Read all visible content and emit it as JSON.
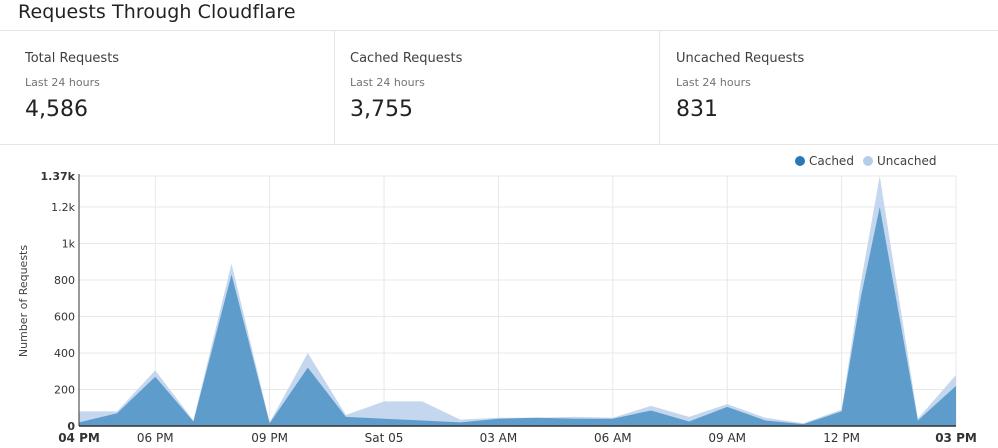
{
  "header": {
    "title": "Requests Through Cloudflare"
  },
  "stats": [
    {
      "label": "Total Requests",
      "sub": "Last 24 hours",
      "value": "4,586"
    },
    {
      "label": "Cached Requests",
      "sub": "Last 24 hours",
      "value": "3,755"
    },
    {
      "label": "Uncached Requests",
      "sub": "Last 24 hours",
      "value": "831"
    }
  ],
  "legend": {
    "cached": "Cached",
    "uncached": "Uncached"
  },
  "colors": {
    "cached": "#5e9ccb",
    "uncached": "#c4d7ee",
    "cached_dot": "#2a78b8",
    "uncached_dot": "#b5cdeb",
    "grid": "#e8e8e8"
  },
  "chart_data": {
    "type": "area",
    "ylabel": "Number of Requests",
    "ylim": [
      0,
      1370
    ],
    "y_ticks": [
      0,
      200,
      400,
      600,
      800,
      1000,
      1200,
      1370
    ],
    "y_tick_labels": [
      "0",
      "200",
      "400",
      "600",
      "800",
      "1k",
      "1.2k",
      "1.37k"
    ],
    "x_labels": [
      "04 PM",
      "06 PM",
      "09 PM",
      "Sat 05",
      "03 AM",
      "06 AM",
      "09 AM",
      "12 PM",
      "03 PM"
    ],
    "x_label_positions": [
      0,
      2,
      5,
      8,
      11,
      14,
      17,
      20,
      23
    ],
    "x_vertical_grid": [
      2,
      5,
      8,
      11,
      14,
      17,
      20,
      23
    ],
    "x_min": 0,
    "x_max": 23,
    "series": [
      {
        "name": "Cached",
        "x": [
          0,
          1,
          2,
          3,
          4,
          5,
          6,
          7,
          8,
          9,
          10,
          11,
          12,
          13,
          14,
          15,
          16,
          17,
          18,
          19,
          20,
          20.5,
          21,
          22,
          23
        ],
        "values": [
          20,
          70,
          270,
          25,
          830,
          15,
          320,
          50,
          40,
          30,
          20,
          40,
          45,
          40,
          40,
          85,
          25,
          105,
          30,
          10,
          80,
          700,
          1200,
          30,
          220
        ]
      },
      {
        "name": "Uncached",
        "x": [
          0,
          1,
          2,
          3,
          4,
          5,
          6,
          7,
          8,
          9,
          10,
          11,
          12,
          13,
          14,
          15,
          16,
          17,
          18,
          19,
          20,
          20.5,
          21,
          22,
          23
        ],
        "values": [
          60,
          10,
          35,
          5,
          60,
          5,
          80,
          10,
          95,
          105,
          15,
          5,
          0,
          10,
          5,
          25,
          25,
          15,
          15,
          5,
          10,
          80,
          170,
          10,
          60
        ]
      }
    ]
  }
}
